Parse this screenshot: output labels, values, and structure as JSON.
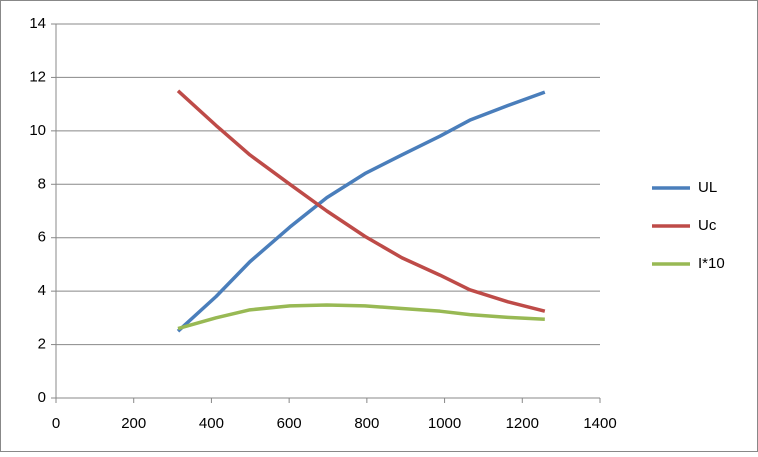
{
  "chart_data": {
    "type": "line",
    "x": [
      314,
      412,
      499,
      602,
      697,
      795,
      890,
      988,
      1065,
      1163,
      1258
    ],
    "series": [
      {
        "name": "UL",
        "color": "#4a7ebb",
        "values": [
          2.5,
          3.8,
          5.1,
          6.4,
          7.5,
          8.4,
          9.1,
          9.8,
          10.4,
          10.95,
          11.45
        ]
      },
      {
        "name": "Uc",
        "color": "#be4b48",
        "values": [
          11.5,
          10.2,
          9.1,
          8.0,
          7.0,
          6.05,
          5.25,
          4.6,
          4.05,
          3.6,
          3.25
        ]
      },
      {
        "name": "I*10",
        "color": "#98b954",
        "values": [
          2.6,
          3.0,
          3.3,
          3.45,
          3.48,
          3.45,
          3.35,
          3.25,
          3.12,
          3.02,
          2.95
        ]
      }
    ],
    "xlim": [
      0,
      1400
    ],
    "xticks": [
      0,
      200,
      400,
      600,
      800,
      1000,
      1200,
      1400
    ],
    "ylim": [
      0,
      14
    ],
    "yticks": [
      0,
      2,
      4,
      6,
      8,
      10,
      12,
      14
    ],
    "grid": true,
    "legend": "right"
  }
}
